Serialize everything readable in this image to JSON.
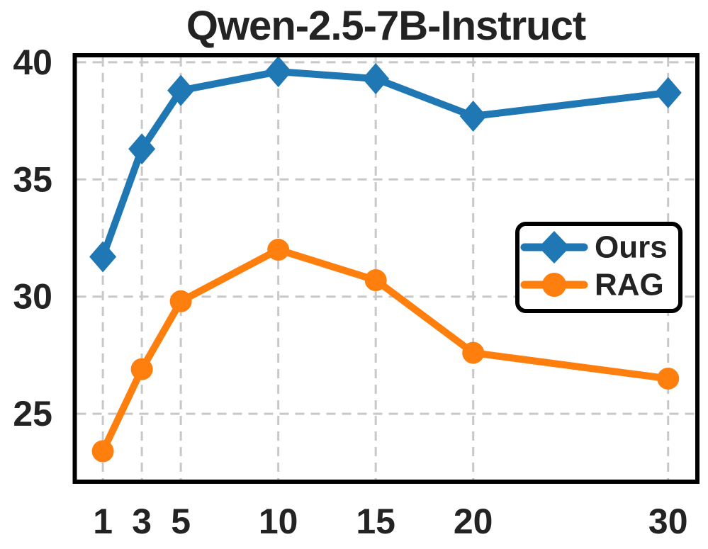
{
  "figure": {
    "background": "#ffffff"
  },
  "chart_data": {
    "type": "line",
    "title": "Qwen-2.5-7B-Instruct",
    "x": [
      1,
      3,
      5,
      10,
      15,
      20,
      30
    ],
    "x_tick_labels": [
      "1",
      "3",
      "5",
      "10",
      "15",
      "20",
      "30"
    ],
    "y_ticks": [
      25,
      30,
      35,
      40
    ],
    "y_tick_labels": [
      "25",
      "30",
      "35",
      "40"
    ],
    "xlim": [
      -0.44,
      31.5
    ],
    "ylim": [
      22.1,
      40.3
    ],
    "grid": "dashed",
    "grid_color": "#c8c8c8",
    "axis_color": "#000000",
    "text_color": "#232323",
    "legend": {
      "position": "center-right",
      "background": "#ffffff",
      "border_color": "#000000"
    },
    "series": [
      {
        "name": "Ours",
        "color": "#1f77b4",
        "marker": "diamond",
        "values": [
          31.7,
          36.3,
          38.8,
          39.6,
          39.3,
          37.7,
          38.7
        ]
      },
      {
        "name": "RAG",
        "color": "#ff7f0e",
        "marker": "circle",
        "values": [
          23.4,
          26.9,
          29.8,
          32.0,
          30.7,
          27.6,
          26.5
        ]
      }
    ]
  }
}
